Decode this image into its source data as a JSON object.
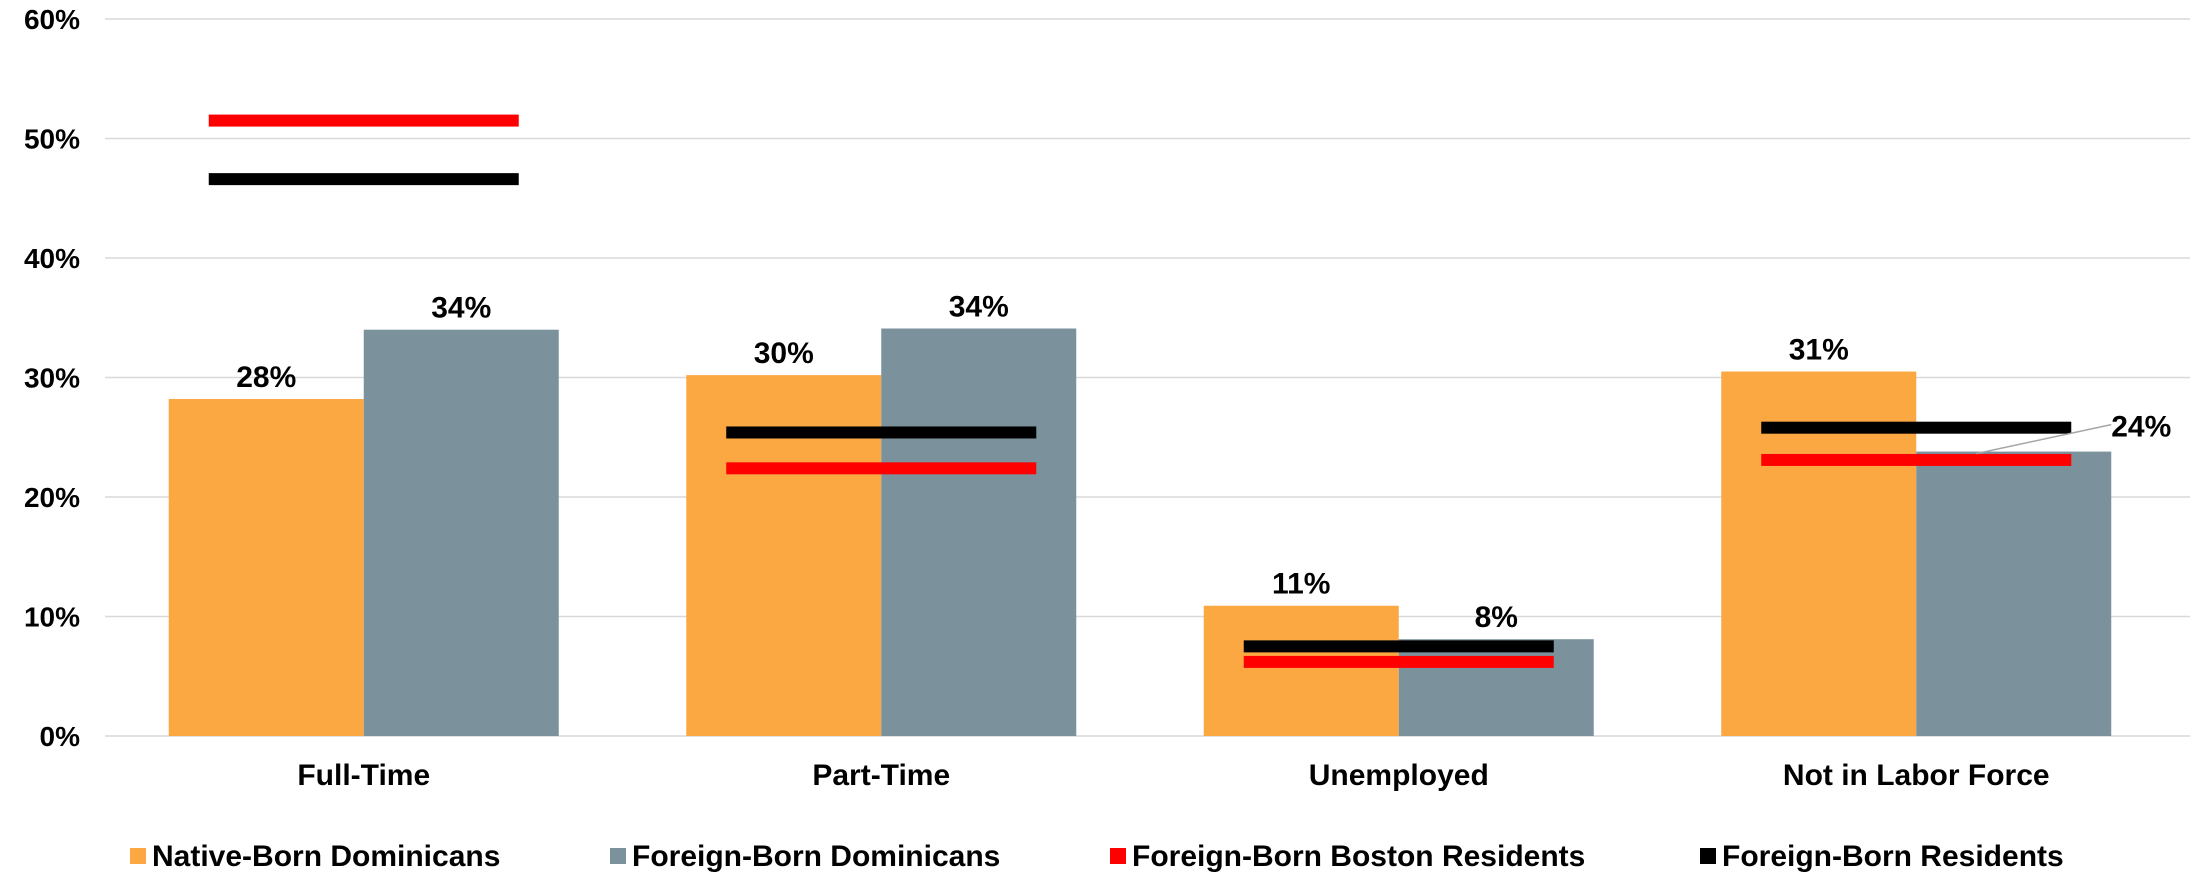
{
  "chart_data": {
    "type": "bar",
    "categories": [
      "Full-Time",
      "Part-Time",
      "Unemployed",
      "Not in Labor Force"
    ],
    "series": [
      {
        "name": "Native-Born Dominicans",
        "kind": "bar",
        "color": "#FBA843",
        "values": [
          28.2,
          30.2,
          10.9,
          30.5
        ]
      },
      {
        "name": "Foreign-Born Dominicans",
        "kind": "bar",
        "color": "#7B919C",
        "values": [
          34.0,
          34.1,
          8.1,
          23.8
        ]
      },
      {
        "name": "Foreign-Born Boston Residents",
        "kind": "marker-line",
        "color": "#FF0000",
        "values": [
          51.5,
          22.4,
          6.2,
          23.1
        ]
      },
      {
        "name": "Foreign-Born Residents",
        "kind": "marker-line",
        "color": "#000000",
        "values": [
          46.6,
          25.4,
          7.5,
          25.8
        ]
      }
    ],
    "data_labels": [
      [
        "28%",
        "30%",
        "11%",
        "31%"
      ],
      [
        "34%",
        "34%",
        "8%",
        "24%"
      ]
    ],
    "ylim": [
      0,
      60
    ],
    "yticks": [
      0,
      10,
      20,
      30,
      40,
      50,
      60
    ],
    "ytick_labels": [
      "0%",
      "10%",
      "20%",
      "30%",
      "40%",
      "50%",
      "60%"
    ],
    "grid": true,
    "legend_position": "bottom",
    "title": "",
    "xlabel": "",
    "ylabel": ""
  }
}
